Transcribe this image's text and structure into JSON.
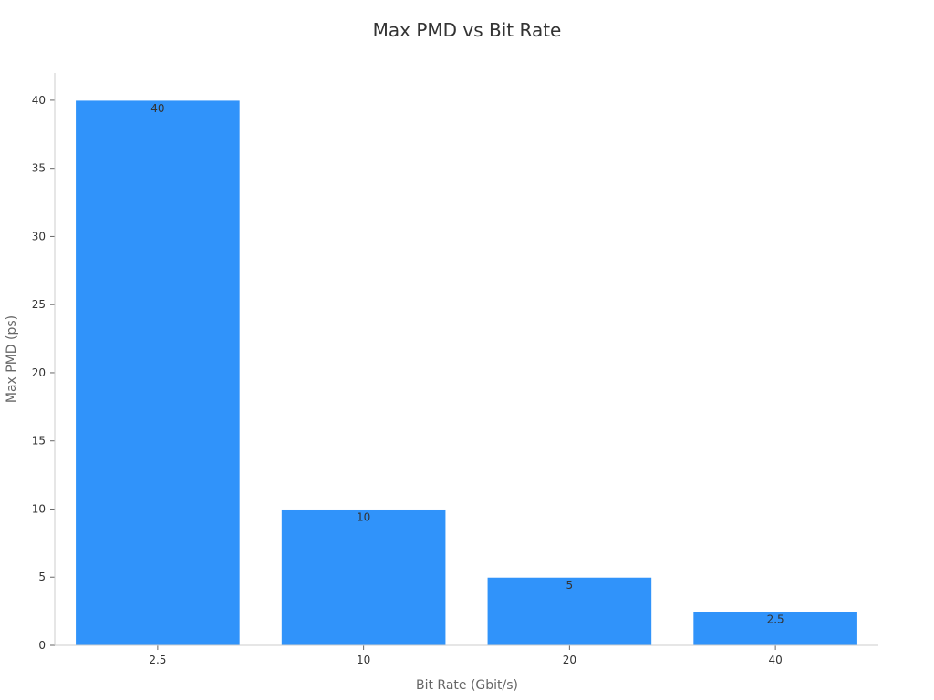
{
  "chart_data": {
    "type": "bar",
    "title": "Max PMD vs Bit Rate",
    "xlabel": "Bit Rate (Gbit/s)",
    "ylabel": "Max PMD (ps)",
    "categories": [
      "2.5",
      "10",
      "20",
      "40"
    ],
    "values": [
      40,
      10,
      5,
      2.5
    ],
    "data_labels": [
      "40",
      "10",
      "5",
      "2.5"
    ],
    "ylim": [
      0,
      42
    ],
    "yticks": [
      0,
      5,
      10,
      15,
      20,
      25,
      30,
      35,
      40
    ],
    "grid": false,
    "legend": "none",
    "bar_color": "#3093fa"
  }
}
